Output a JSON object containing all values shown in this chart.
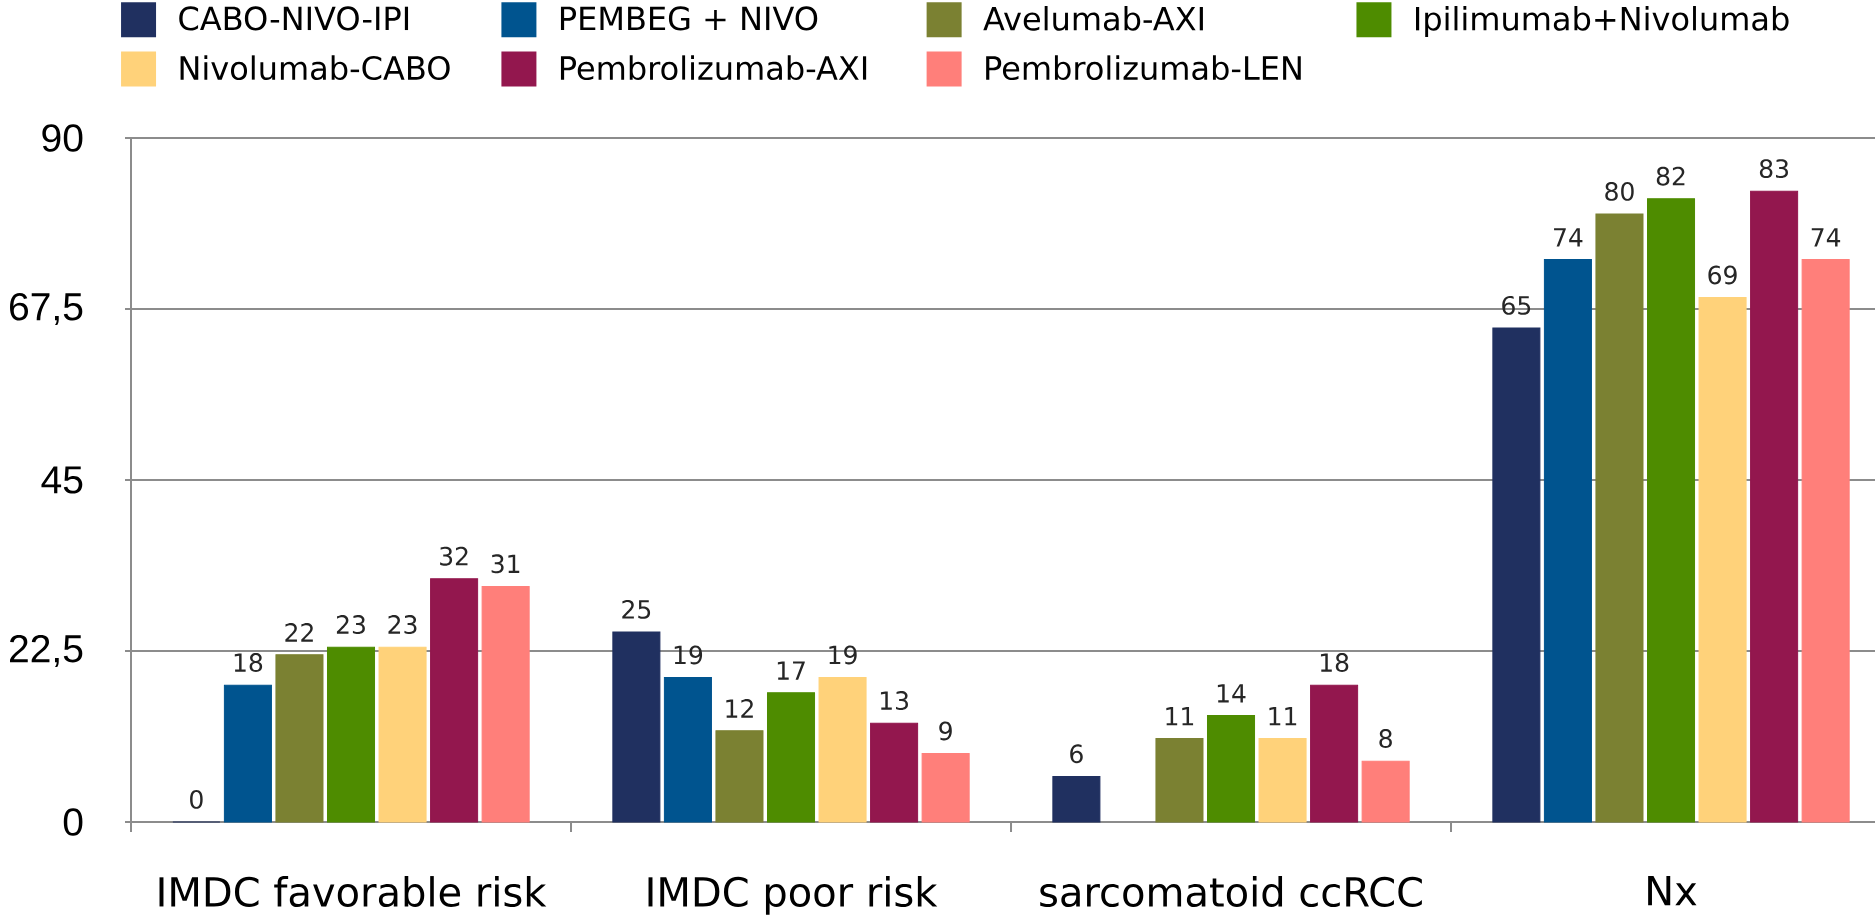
{
  "chart_data": {
    "type": "bar",
    "categories": [
      "IMDC favorable risk",
      "IMDC poor risk",
      "sarcomatoid ccRCC",
      "Nx"
    ],
    "series": [
      {
        "name": "CABO-NIVO-IPI",
        "color": "#203060",
        "values": [
          0,
          25,
          6,
          65
        ]
      },
      {
        "name": "PEMBEG + NIVO",
        "color": "#00548f",
        "values": [
          18,
          19,
          null,
          74
        ]
      },
      {
        "name": "Avelumab-AXI",
        "color": "#7b8132",
        "values": [
          22,
          12,
          11,
          80
        ]
      },
      {
        "name": "Ipilimumab+Nivolumab",
        "color": "#4e8c00",
        "values": [
          23,
          17,
          14,
          82
        ]
      },
      {
        "name": "Nivolumab-CABO",
        "color": "#ffd27a",
        "values": [
          23,
          19,
          11,
          69
        ]
      },
      {
        "name": "Pembrolizumab-AXI",
        "color": "#93174e",
        "values": [
          32,
          13,
          18,
          83
        ]
      },
      {
        "name": "Pembrolizumab-LEN",
        "color": "#ff7f7a",
        "values": [
          31,
          9,
          8,
          74
        ]
      }
    ],
    "ylim": [
      0,
      90
    ],
    "yticks": [
      0,
      {
        "value": 22.5,
        "label": "22,5"
      },
      45,
      {
        "value": 67.5,
        "label": "67,5"
      },
      90
    ],
    "grid": "y",
    "legend": "top",
    "data_labels": true
  }
}
